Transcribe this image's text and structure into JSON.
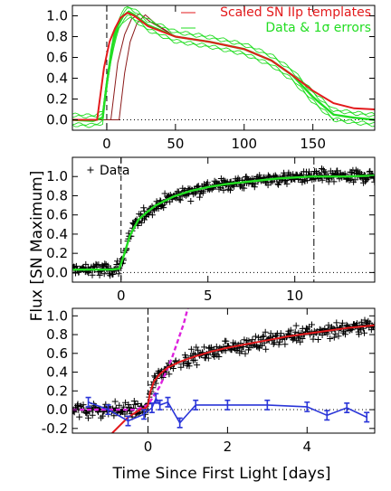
{
  "figure": {
    "ylabel": "Flux [SN Maximum]",
    "xlabel": "Time Since First Light [days]"
  },
  "chart_data": [
    {
      "type": "line",
      "xlim": [
        -25,
        195
      ],
      "ylim": [
        -0.1,
        1.1
      ],
      "xticks": [
        0,
        50,
        100,
        150
      ],
      "yticks": [
        0.0,
        0.2,
        0.4,
        0.6,
        0.8,
        1.0
      ],
      "ytick_labels": [
        "0.0",
        "0.2",
        "0.4",
        "0.6",
        "0.8",
        "1.0"
      ],
      "legend_position": "top-right",
      "legend": [
        {
          "label": "Scaled SN IIp templates",
          "color": "#e31a1c"
        },
        {
          "label": "Data & 1σ errors",
          "color": "#22dd22"
        }
      ],
      "first_light_line_x": 0,
      "zero_line_y": 0,
      "series": [
        {
          "name": "Scaled SN IIp templates",
          "color": "#e31a1c",
          "x": [
            -25,
            -7,
            -2,
            2,
            6,
            10,
            15,
            20,
            30,
            50,
            75,
            100,
            120,
            135,
            150,
            165,
            180,
            195
          ],
          "y": [
            0.0,
            0.0,
            0.5,
            0.75,
            0.88,
            0.98,
            1.03,
            1.0,
            0.9,
            0.8,
            0.75,
            0.68,
            0.57,
            0.43,
            0.28,
            0.16,
            0.11,
            0.1
          ]
        },
        {
          "name": "Data & 1σ errors",
          "color": "#22dd22",
          "x": [
            -25,
            -10,
            -3,
            0,
            4,
            8,
            12,
            16,
            20,
            30,
            50,
            75,
            100,
            120,
            135,
            150,
            165,
            180,
            195
          ],
          "y": [
            0.0,
            -0.01,
            0.02,
            0.35,
            0.7,
            0.9,
            1.0,
            1.04,
            1.01,
            0.91,
            0.8,
            0.75,
            0.68,
            0.57,
            0.43,
            0.22,
            0.05,
            0.02,
            0.0
          ]
        }
      ],
      "template_variants": [
        {
          "x": [
            -25,
            3,
            8,
            13,
            18,
            24,
            32,
            50
          ],
          "y": [
            0.0,
            0.0,
            0.55,
            0.82,
            0.97,
            1.02,
            0.94,
            0.8
          ]
        },
        {
          "x": [
            -25,
            9,
            13,
            17,
            22,
            28,
            36,
            50
          ],
          "y": [
            0.0,
            0.0,
            0.45,
            0.75,
            0.93,
            1.01,
            0.92,
            0.8
          ]
        }
      ]
    },
    {
      "type": "scatter",
      "xlim": [
        -2.8,
        14.6
      ],
      "ylim": [
        -0.1,
        1.2
      ],
      "xticks": [
        0,
        5,
        10
      ],
      "yticks": [
        0.0,
        0.2,
        0.4,
        0.6,
        0.8,
        1.0
      ],
      "ytick_labels": [
        "0.0",
        "0.2",
        "0.4",
        "0.6",
        "0.8",
        "1.0"
      ],
      "legend_position": "top-left",
      "legend": [
        {
          "label": "Data",
          "marker": "+"
        }
      ],
      "first_light_line_x": 0,
      "maximum_line_x": 11.1,
      "zero_line_y": 0,
      "model": {
        "color": "#22dd22",
        "x": [
          -2.8,
          -0.5,
          -0.1,
          0.2,
          0.5,
          1,
          1.5,
          2,
          3,
          4,
          5,
          6,
          7,
          8,
          9,
          10,
          11,
          12,
          13,
          14.6
        ],
        "y": [
          0.03,
          0.03,
          0.04,
          0.2,
          0.38,
          0.55,
          0.63,
          0.7,
          0.79,
          0.85,
          0.89,
          0.92,
          0.94,
          0.96,
          0.98,
          0.99,
          1.0,
          1.0,
          1.0,
          1.01
        ]
      },
      "data": {
        "marker": "+",
        "noise_sd": 0.035,
        "n_points": 420
      }
    },
    {
      "type": "scatter",
      "xlim": [
        -1.9,
        5.7
      ],
      "ylim": [
        -0.25,
        1.08
      ],
      "xticks": [
        0,
        2,
        4
      ],
      "yticks": [
        -0.2,
        0.0,
        0.2,
        0.4,
        0.6,
        0.8,
        1.0
      ],
      "ytick_labels": [
        "-0.2",
        "0.0",
        "0.2",
        "0.4",
        "0.6",
        "0.8",
        "1.0"
      ],
      "first_light_line_x": 0,
      "zero_line_y": 0,
      "data": {
        "marker": "+",
        "noise_sd": 0.04,
        "n_points": 360
      },
      "model_fit": {
        "color": "#e31a1c",
        "x": [
          -0.9,
          -0.5,
          -0.2,
          -0.05,
          0.0,
          0.05,
          0.15,
          0.3,
          0.5,
          0.8,
          1.2,
          1.6,
          2,
          2.5,
          3,
          3.5,
          4,
          4.5,
          5,
          5.7
        ],
        "y": [
          -0.25,
          -0.08,
          0.0,
          0.02,
          0.05,
          0.18,
          0.3,
          0.38,
          0.45,
          0.51,
          0.57,
          0.62,
          0.66,
          0.7,
          0.74,
          0.78,
          0.81,
          0.84,
          0.87,
          0.9
        ]
      },
      "early_rise_fit": {
        "color": "#dd22dd",
        "x": [
          -1.9,
          -0.3,
          0.0,
          0.3,
          0.6,
          0.9,
          1.0
        ],
        "y": [
          0.0,
          0.0,
          0.05,
          0.25,
          0.55,
          0.92,
          1.08
        ]
      },
      "residuals": {
        "color": "#2a35d8",
        "x": [
          -1.5,
          -1.0,
          -0.5,
          -0.1,
          0.1,
          0.2,
          0.3,
          0.5,
          0.8,
          1.2,
          2.0,
          3.0,
          4.0,
          4.5,
          5.0,
          5.5
        ],
        "y": [
          0.08,
          0.0,
          -0.12,
          -0.05,
          0.02,
          0.12,
          0.05,
          0.08,
          -0.14,
          0.05,
          0.05,
          0.05,
          0.03,
          -0.06,
          0.02,
          -0.08
        ],
        "err": [
          0.05,
          0.05,
          0.05,
          0.05,
          0.05,
          0.05,
          0.05,
          0.05,
          0.05,
          0.05,
          0.05,
          0.05,
          0.05,
          0.05,
          0.05,
          0.05
        ]
      }
    }
  ]
}
